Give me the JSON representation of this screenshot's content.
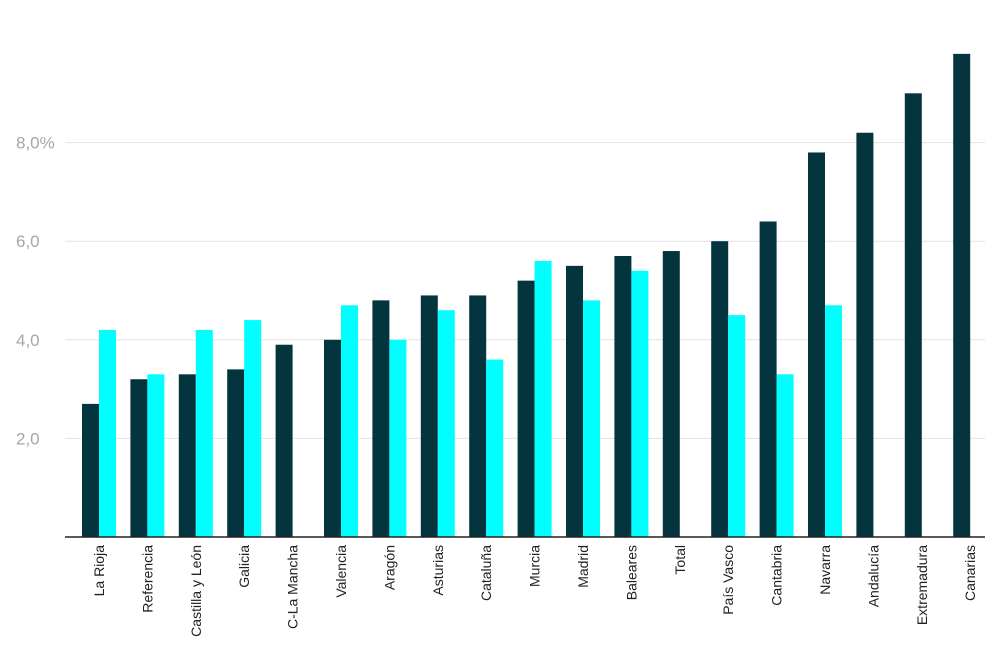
{
  "chart_data": {
    "type": "bar",
    "title": "",
    "xlabel": "",
    "ylabel": "",
    "ylim": [
      0,
      9.9
    ],
    "yticks": [
      {
        "value": 2,
        "label": "2,0"
      },
      {
        "value": 4,
        "label": "4,0"
      },
      {
        "value": 6,
        "label": "6,0"
      },
      {
        "value": 8,
        "label": "8,0%"
      }
    ],
    "grid": true,
    "legend": "none",
    "categories": [
      "La Rioja",
      "Referencia",
      "Castilla y León",
      "Galicia",
      "C-La Mancha",
      "Valencia",
      "Aragón",
      "Asturias",
      "Cataluña",
      "Murcia",
      "Madrid",
      "Baleares",
      "Total",
      "País Vasco",
      "Cantabria",
      "Navarra",
      "Andalucía",
      "Extremadura",
      "Canarias"
    ],
    "series": [
      {
        "color": "#04353f",
        "values": [
          2.7,
          3.2,
          3.3,
          3.4,
          3.9,
          4.0,
          4.8,
          4.9,
          4.9,
          5.2,
          5.5,
          5.7,
          5.8,
          6.0,
          6.4,
          7.8,
          8.2,
          9.0,
          9.8
        ]
      },
      {
        "color": "#00ffff",
        "values": [
          4.2,
          3.3,
          4.2,
          4.4,
          null,
          4.7,
          4.0,
          4.6,
          3.6,
          5.6,
          4.8,
          5.4,
          null,
          4.5,
          3.3,
          4.7,
          null,
          null,
          null
        ]
      }
    ]
  }
}
